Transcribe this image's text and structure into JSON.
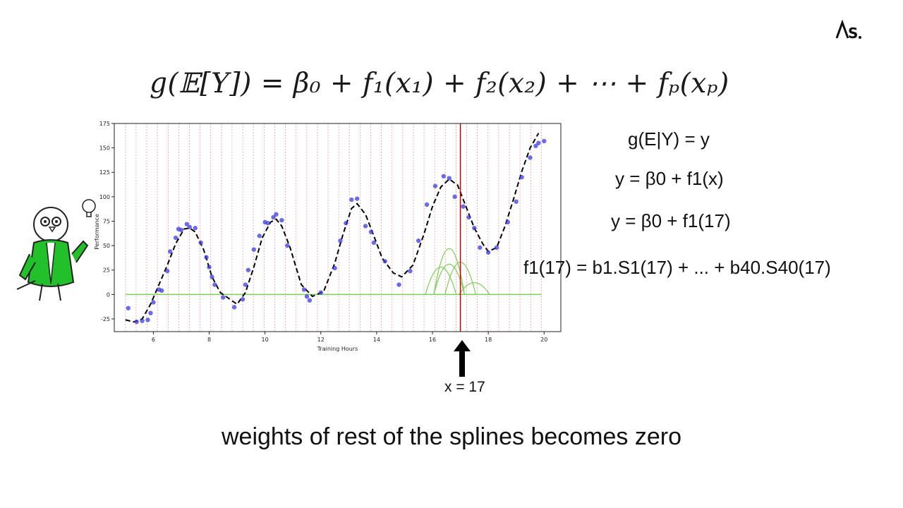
{
  "header": {
    "logo_text": "ΛS."
  },
  "formula": {
    "lhs": "g(𝔼[Y])",
    "rhs": "= β₀ + f₁(x₁) + f₂(x₂) + ⋯ + fₚ(xₚ)"
  },
  "equations": {
    "line1": "g(E|Y) = y",
    "line2": "y = β0 + f1(x)",
    "line3": "y = β0 + f1(17)",
    "line4": "f1(17) = b1.S1(17) + ... + b40.S40(17)"
  },
  "annotation": {
    "label": "x = 17"
  },
  "caption": "weights of rest of the splines becomes zero",
  "colors": {
    "points": "#3b3bdd",
    "fit": "#000000",
    "splines": "#7ccf5a",
    "knots": "#f08080",
    "marker": "#c00000"
  },
  "chart_data": {
    "type": "scatter",
    "xlabel": "Training Hours",
    "ylabel": "Performance",
    "xlim": [
      4.6,
      20.6
    ],
    "ylim": [
      -38,
      175
    ],
    "x_ticks": [
      6,
      8,
      10,
      12,
      14,
      16,
      18,
      20
    ],
    "y_ticks": [
      -25,
      0,
      25,
      50,
      75,
      100,
      125,
      150,
      175
    ],
    "vertical_marker_x": 17,
    "knots_start": 5,
    "knots_end": 19.9,
    "knot_count": 40,
    "points": [
      [
        5.1,
        -14
      ],
      [
        5.4,
        -28
      ],
      [
        5.6,
        -27
      ],
      [
        5.8,
        -26
      ],
      [
        5.9,
        -19
      ],
      [
        6.0,
        -8
      ],
      [
        6.2,
        5
      ],
      [
        6.3,
        4
      ],
      [
        6.5,
        24
      ],
      [
        6.6,
        44
      ],
      [
        6.8,
        58
      ],
      [
        6.9,
        67
      ],
      [
        7.0,
        66
      ],
      [
        7.2,
        72
      ],
      [
        7.3,
        69
      ],
      [
        7.5,
        68
      ],
      [
        7.7,
        53
      ],
      [
        7.9,
        38
      ],
      [
        8.0,
        28
      ],
      [
        8.1,
        18
      ],
      [
        8.2,
        10
      ],
      [
        8.5,
        -3
      ],
      [
        8.9,
        -13
      ],
      [
        9.2,
        -5
      ],
      [
        9.3,
        10
      ],
      [
        9.4,
        25
      ],
      [
        9.6,
        46
      ],
      [
        9.8,
        60
      ],
      [
        10.0,
        74
      ],
      [
        10.1,
        73
      ],
      [
        10.3,
        79
      ],
      [
        10.4,
        82
      ],
      [
        10.6,
        76
      ],
      [
        10.8,
        50
      ],
      [
        11.4,
        5
      ],
      [
        11.5,
        -2
      ],
      [
        11.6,
        -6
      ],
      [
        12.0,
        2
      ],
      [
        12.5,
        27
      ],
      [
        12.7,
        55
      ],
      [
        12.9,
        73
      ],
      [
        13.1,
        97
      ],
      [
        13.3,
        98
      ],
      [
        13.6,
        70
      ],
      [
        13.8,
        64
      ],
      [
        13.9,
        53
      ],
      [
        14.3,
        34
      ],
      [
        14.8,
        10
      ],
      [
        15.2,
        24
      ],
      [
        15.5,
        55
      ],
      [
        15.8,
        92
      ],
      [
        16.1,
        111
      ],
      [
        16.4,
        121
      ],
      [
        16.6,
        119
      ],
      [
        16.8,
        100
      ],
      [
        17.1,
        90
      ],
      [
        17.3,
        79
      ],
      [
        17.5,
        68
      ],
      [
        17.7,
        48
      ],
      [
        18.0,
        43
      ],
      [
        18.3,
        48
      ],
      [
        18.7,
        74
      ],
      [
        19.0,
        95
      ],
      [
        19.2,
        120
      ],
      [
        19.5,
        140
      ],
      [
        19.7,
        152
      ],
      [
        19.8,
        155
      ],
      [
        20.0,
        157
      ]
    ],
    "fit_line": [
      [
        5.0,
        -26
      ],
      [
        5.3,
        -28
      ],
      [
        5.6,
        -25
      ],
      [
        5.9,
        -10
      ],
      [
        6.2,
        10
      ],
      [
        6.5,
        30
      ],
      [
        6.8,
        52
      ],
      [
        7.1,
        67
      ],
      [
        7.3,
        68
      ],
      [
        7.5,
        64
      ],
      [
        7.8,
        46
      ],
      [
        8.1,
        18
      ],
      [
        8.4,
        2
      ],
      [
        9.0,
        -10
      ],
      [
        9.3,
        2
      ],
      [
        9.6,
        28
      ],
      [
        9.9,
        58
      ],
      [
        10.2,
        74
      ],
      [
        10.4,
        77
      ],
      [
        10.6,
        70
      ],
      [
        10.9,
        48
      ],
      [
        11.3,
        10
      ],
      [
        11.7,
        -2
      ],
      [
        12.1,
        3
      ],
      [
        12.5,
        32
      ],
      [
        12.8,
        62
      ],
      [
        13.1,
        88
      ],
      [
        13.3,
        93
      ],
      [
        13.6,
        82
      ],
      [
        13.9,
        60
      ],
      [
        14.2,
        37
      ],
      [
        14.6,
        22
      ],
      [
        14.9,
        18
      ],
      [
        15.3,
        30
      ],
      [
        15.7,
        62
      ],
      [
        16.0,
        90
      ],
      [
        16.3,
        110
      ],
      [
        16.6,
        118
      ],
      [
        16.9,
        112
      ],
      [
        17.2,
        90
      ],
      [
        17.5,
        68
      ],
      [
        17.8,
        52
      ],
      [
        18.0,
        44
      ],
      [
        18.3,
        48
      ],
      [
        18.6,
        70
      ],
      [
        18.9,
        97
      ],
      [
        19.2,
        126
      ],
      [
        19.5,
        150
      ],
      [
        19.8,
        165
      ]
    ],
    "splines": [
      {
        "center": 16.3,
        "height": 28
      },
      {
        "center": 16.6,
        "height": 31
      },
      {
        "center": 16.6,
        "height": 47
      },
      {
        "center": 17.0,
        "height": 33
      },
      {
        "center": 17.5,
        "height": 12
      }
    ]
  }
}
